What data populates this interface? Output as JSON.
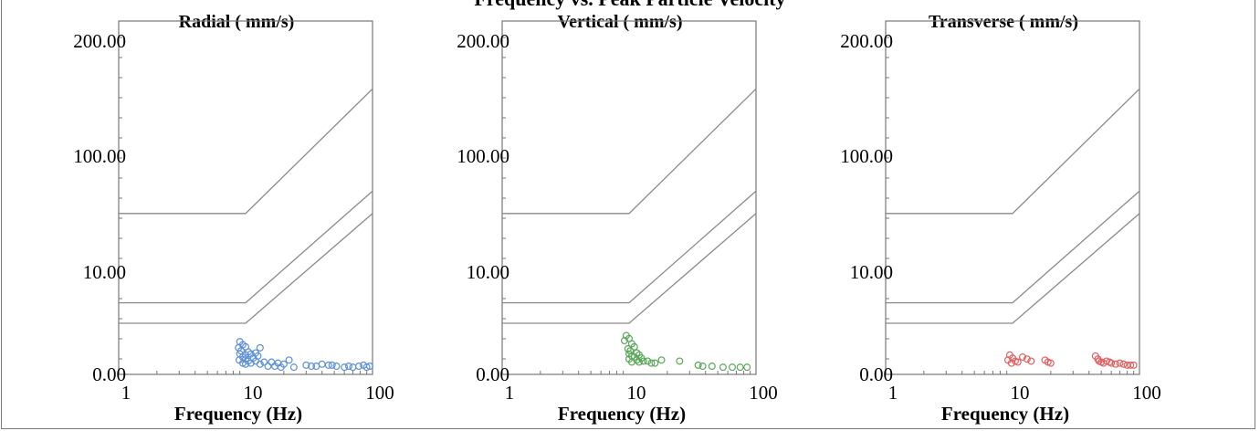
{
  "header_title": "Frequency vs. Peak Particle Velocity",
  "chart_data": [
    {
      "type": "scatter",
      "title": "Radial ( mm/s)",
      "xlabel": "Frequency (Hz)",
      "xscale": "log",
      "xlim": [
        1,
        100
      ],
      "xticks": [
        "1",
        "10",
        "100"
      ],
      "yticks": [
        "0.00",
        "10.00",
        "100.00",
        "200.00"
      ],
      "point_color": "#5b8fd6",
      "limit_curves": [
        [
          [
            1,
            32
          ],
          [
            10,
            32
          ],
          [
            100,
            150
          ]
        ],
        [
          [
            1,
            7
          ],
          [
            10,
            7
          ],
          [
            100,
            50
          ]
        ],
        [
          [
            1,
            5
          ],
          [
            10,
            5
          ],
          [
            100,
            32
          ]
        ]
      ],
      "points": [
        [
          9.0,
          3.2
        ],
        [
          9.5,
          2.9
        ],
        [
          10.0,
          2.7
        ],
        [
          8.8,
          2.6
        ],
        [
          9.2,
          2.3
        ],
        [
          10.5,
          2.2
        ],
        [
          11.0,
          2.0
        ],
        [
          9.0,
          2.0
        ],
        [
          10.0,
          1.9
        ],
        [
          12.0,
          2.1
        ],
        [
          13.0,
          2.6
        ],
        [
          12.5,
          1.8
        ],
        [
          9.5,
          1.7
        ],
        [
          11.5,
          1.6
        ],
        [
          10.0,
          1.5
        ],
        [
          8.9,
          1.4
        ],
        [
          10.5,
          1.3
        ],
        [
          12.0,
          1.3
        ],
        [
          14.0,
          1.2
        ],
        [
          9.5,
          1.1
        ],
        [
          11.0,
          1.1
        ],
        [
          13.0,
          1.0
        ],
        [
          10.0,
          1.0
        ],
        [
          16.0,
          1.2
        ],
        [
          18.0,
          1.1
        ],
        [
          20.0,
          1.0
        ],
        [
          22.0,
          1.4
        ],
        [
          15.0,
          0.8
        ],
        [
          17.0,
          0.8
        ],
        [
          19.0,
          0.7
        ],
        [
          24.0,
          0.7
        ],
        [
          30.0,
          0.9
        ],
        [
          33.0,
          0.8
        ],
        [
          36.0,
          0.8
        ],
        [
          40.0,
          1.0
        ],
        [
          45.0,
          0.9
        ],
        [
          48.0,
          0.9
        ],
        [
          52.0,
          0.8
        ],
        [
          60.0,
          0.7
        ],
        [
          65.0,
          0.8
        ],
        [
          70.0,
          0.7
        ],
        [
          78.0,
          0.8
        ],
        [
          85.0,
          0.9
        ],
        [
          90.0,
          0.7
        ],
        [
          95.0,
          0.8
        ]
      ]
    },
    {
      "type": "scatter",
      "title": "Vertical ( mm/s)",
      "xlabel": "Frequency (Hz)",
      "xscale": "log",
      "xlim": [
        1,
        100
      ],
      "xticks": [
        "1",
        "10",
        "100"
      ],
      "yticks": [
        "0.00",
        "10.00",
        "100.00",
        "200.00"
      ],
      "point_color": "#5aa65a",
      "limit_curves": [
        [
          [
            1,
            32
          ],
          [
            10,
            32
          ],
          [
            100,
            150
          ]
        ],
        [
          [
            1,
            7
          ],
          [
            10,
            7
          ],
          [
            100,
            50
          ]
        ],
        [
          [
            1,
            5
          ],
          [
            10,
            5
          ],
          [
            100,
            32
          ]
        ]
      ],
      "points": [
        [
          9.5,
          3.8
        ],
        [
          10.0,
          3.5
        ],
        [
          9.2,
          3.3
        ],
        [
          10.5,
          3.0
        ],
        [
          11.0,
          2.7
        ],
        [
          9.8,
          2.5
        ],
        [
          10.2,
          2.3
        ],
        [
          11.5,
          2.1
        ],
        [
          10.0,
          2.0
        ],
        [
          12.0,
          1.9
        ],
        [
          10.5,
          1.8
        ],
        [
          11.0,
          1.7
        ],
        [
          12.5,
          1.6
        ],
        [
          10.0,
          1.5
        ],
        [
          11.5,
          1.4
        ],
        [
          13.0,
          1.3
        ],
        [
          14.0,
          1.3
        ],
        [
          10.5,
          1.2
        ],
        [
          12.0,
          1.2
        ],
        [
          15.0,
          1.1
        ],
        [
          16.0,
          1.1
        ],
        [
          18.0,
          1.4
        ],
        [
          25.0,
          1.3
        ],
        [
          35.0,
          0.9
        ],
        [
          38.0,
          0.8
        ],
        [
          45.0,
          0.8
        ],
        [
          55.0,
          0.7
        ],
        [
          65.0,
          0.7
        ],
        [
          75.0,
          0.7
        ],
        [
          85.0,
          0.7
        ]
      ]
    },
    {
      "type": "scatter",
      "title": "Transverse ( mm/s)",
      "xlabel": "Frequency (Hz)",
      "xscale": "log",
      "xlim": [
        1,
        100
      ],
      "xticks": [
        "1",
        "10",
        "100"
      ],
      "yticks": [
        "0.00",
        "10.00",
        "100.00",
        "200.00"
      ],
      "point_color": "#e06060",
      "limit_curves": [
        [
          [
            1,
            32
          ],
          [
            10,
            32
          ],
          [
            100,
            150
          ]
        ],
        [
          [
            1,
            7
          ],
          [
            10,
            7
          ],
          [
            100,
            50
          ]
        ],
        [
          [
            1,
            5
          ],
          [
            10,
            5
          ],
          [
            100,
            32
          ]
        ]
      ],
      "points": [
        [
          9.5,
          1.9
        ],
        [
          10.0,
          1.6
        ],
        [
          9.2,
          1.4
        ],
        [
          10.5,
          1.3
        ],
        [
          9.8,
          1.1
        ],
        [
          11.0,
          1.2
        ],
        [
          12.0,
          1.7
        ],
        [
          13.0,
          1.5
        ],
        [
          14.0,
          1.3
        ],
        [
          18.0,
          1.4
        ],
        [
          19.0,
          1.2
        ],
        [
          20.0,
          1.1
        ],
        [
          45.0,
          1.8
        ],
        [
          47.0,
          1.5
        ],
        [
          48.0,
          1.3
        ],
        [
          50.0,
          1.2
        ],
        [
          52.0,
          1.1
        ],
        [
          55.0,
          1.3
        ],
        [
          58.0,
          1.2
        ],
        [
          60.0,
          1.1
        ],
        [
          65.0,
          1.0
        ],
        [
          70.0,
          1.1
        ],
        [
          75.0,
          1.0
        ],
        [
          80.0,
          0.9
        ],
        [
          85.0,
          0.9
        ],
        [
          90.0,
          0.9
        ]
      ]
    }
  ]
}
